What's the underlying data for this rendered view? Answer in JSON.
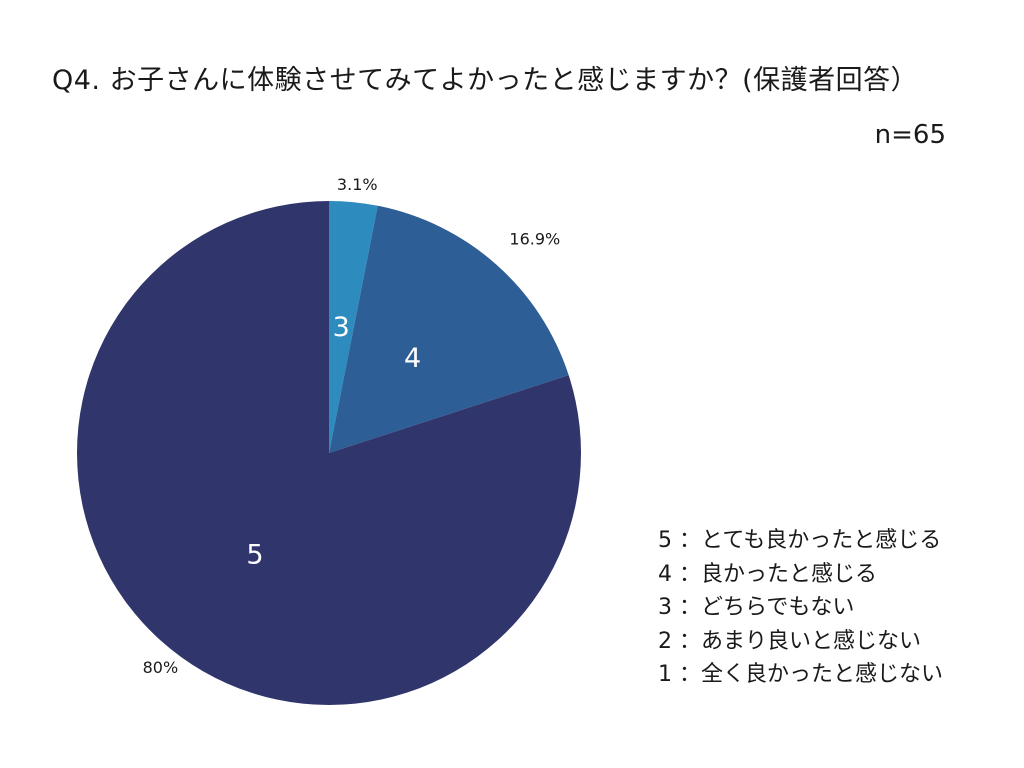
{
  "header": {
    "title": "Q4. お子さんに体験させてみてよかったと感じますか？(保護者回答）",
    "sample_size": "n=65"
  },
  "legend": {
    "items": [
      "5 ：とても良かったと感じる",
      "4 ：良かったと感じる",
      "3 ：どちらでもない",
      "2 ：あまり良いと感じない",
      "1 ：全く良かったと感じない"
    ]
  },
  "chart_data": {
    "type": "pie",
    "title": "Q4. お子さんに体験させてみてよかったと感じますか？(保護者回答）",
    "start": "12 o'clock",
    "direction": "clockwise",
    "slices": [
      {
        "label": "3",
        "value": 3.1,
        "value_label": "3.1%",
        "color": "#2e8bbe"
      },
      {
        "label": "4",
        "value": 16.9,
        "value_label": "16.9%",
        "color": "#2d5e96"
      },
      {
        "label": "5",
        "value": 80,
        "value_label": "80%",
        "color": "#30356c"
      }
    ]
  }
}
